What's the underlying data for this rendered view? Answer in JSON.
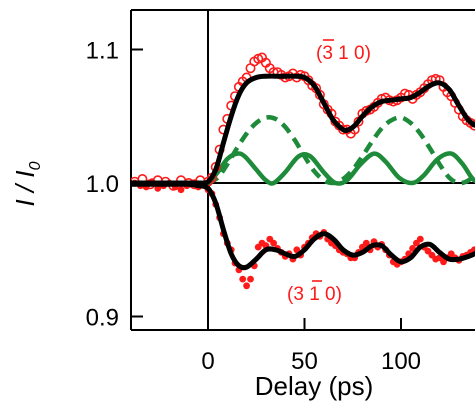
{
  "chart_data": {
    "type": "scatter",
    "xlabel": "Delay (ps)",
    "ylabel_main": "I / I",
    "ylabel_sub": "0",
    "xlim": [
      -40,
      145
    ],
    "ylim": [
      0.888,
      1.128
    ],
    "x_ticks": [
      0,
      50,
      100
    ],
    "x_tick_labels": [
      "0",
      "50",
      "100"
    ],
    "y_ticks": [
      0.9,
      1.0,
      1.1
    ],
    "y_tick_labels": [
      "0.9",
      "1.0",
      "1.1"
    ],
    "reference_lines": {
      "x": 0,
      "y": 1.0
    },
    "annotations": [
      {
        "text_open": "(",
        "text_bar": "3",
        "text_rest": " 1 0)",
        "overbar_on": "first-index",
        "series": "upper"
      },
      {
        "text_open": "(3 ",
        "text_bar": "1",
        "text_rest": " 0)",
        "overbar_on": "second-index",
        "series": "lower"
      }
    ],
    "series": [
      {
        "kind": "fit-upper",
        "style": "solid",
        "color": "#000000",
        "x": [
          -40,
          -30,
          -20,
          -10,
          -5,
          0,
          4,
          8,
          12,
          16,
          20,
          25,
          30,
          35,
          40,
          45,
          50,
          55,
          60,
          65,
          70,
          73,
          76,
          80,
          85,
          90,
          95,
          100,
          105,
          110,
          115,
          120,
          125,
          130,
          135,
          140,
          145
        ],
        "y": [
          1.0,
          1.0,
          1.0,
          1.0,
          1.0,
          1.001,
          1.01,
          1.03,
          1.05,
          1.066,
          1.075,
          1.079,
          1.08,
          1.08,
          1.08,
          1.08,
          1.079,
          1.073,
          1.06,
          1.047,
          1.04,
          1.04,
          1.043,
          1.05,
          1.057,
          1.061,
          1.062,
          1.063,
          1.064,
          1.068,
          1.073,
          1.075,
          1.07,
          1.058,
          1.047,
          1.043,
          1.05
        ]
      },
      {
        "kind": "fit-lower",
        "style": "solid",
        "color": "#000000",
        "x": [
          -40,
          -30,
          -20,
          -10,
          -5,
          0,
          4,
          8,
          12,
          16,
          20,
          25,
          30,
          35,
          40,
          45,
          50,
          55,
          60,
          65,
          70,
          75,
          80,
          85,
          90,
          95,
          100,
          105,
          110,
          115,
          120,
          125,
          130,
          135,
          140,
          145
        ],
        "y": [
          0.999,
          0.999,
          0.999,
          0.999,
          0.998,
          0.996,
          0.985,
          0.965,
          0.947,
          0.938,
          0.937,
          0.943,
          0.95,
          0.95,
          0.947,
          0.945,
          0.95,
          0.958,
          0.962,
          0.958,
          0.95,
          0.946,
          0.948,
          0.953,
          0.953,
          0.946,
          0.941,
          0.944,
          0.952,
          0.954,
          0.948,
          0.943,
          0.943,
          0.945,
          0.948,
          0.95
        ]
      },
      {
        "kind": "component-slow",
        "style": "dashed",
        "color": "#1d8b3a",
        "x": [
          0,
          5,
          10,
          15,
          20,
          25,
          30,
          35,
          40,
          45,
          50,
          55,
          60,
          65,
          70,
          75,
          80,
          85,
          90,
          95,
          100,
          105,
          110,
          115,
          120,
          125,
          130,
          135,
          140,
          145
        ],
        "y": [
          1.0,
          1.004,
          1.014,
          1.026,
          1.037,
          1.045,
          1.049,
          1.048,
          1.042,
          1.032,
          1.02,
          1.009,
          1.002,
          1.0,
          1.003,
          1.01,
          1.02,
          1.031,
          1.041,
          1.047,
          1.049,
          1.045,
          1.037,
          1.026,
          1.014,
          1.004,
          1.0,
          1.002,
          1.009,
          1.02
        ]
      },
      {
        "kind": "component-fast",
        "style": "solid",
        "color": "#1d8b3a",
        "x": [
          -40,
          -20,
          -5,
          0,
          5,
          10,
          15,
          19,
          25,
          30,
          34,
          40,
          47,
          53,
          60,
          66,
          72,
          79,
          86,
          92,
          99,
          106,
          112,
          119,
          126,
          132,
          138,
          145
        ],
        "y": [
          1.0,
          1.0,
          1.0,
          1.0,
          1.008,
          1.018,
          1.022,
          1.02,
          1.01,
          1.002,
          1.0,
          1.008,
          1.02,
          1.02,
          1.008,
          1.0,
          1.002,
          1.014,
          1.022,
          1.016,
          1.004,
          1.0,
          1.006,
          1.018,
          1.022,
          1.014,
          1.002,
          1.0
        ]
      },
      {
        "kind": "data-upper",
        "marker": "open-circle",
        "color": "#ff1a1a",
        "x": [
          -38,
          -34,
          -30,
          -26,
          -22,
          -18,
          -14,
          -10,
          -7,
          -4,
          0,
          2,
          4,
          6,
          8,
          10,
          12,
          14,
          16,
          18,
          20,
          22,
          24,
          26,
          28,
          30,
          32,
          34,
          36,
          38,
          40,
          42,
          44,
          46,
          48,
          50,
          52,
          54,
          56,
          58,
          60,
          62,
          64,
          66,
          68,
          70,
          72,
          74,
          76,
          78,
          80,
          82,
          84,
          86,
          88,
          90,
          92,
          94,
          96,
          98,
          100,
          102,
          104,
          106,
          108,
          110,
          112,
          114,
          116,
          118,
          120,
          122,
          124,
          126,
          128,
          130,
          132,
          134,
          136,
          138,
          140,
          142,
          144
        ],
        "y": [
          1.001,
          1.003,
          0.999,
          1.002,
          1.001,
          0.998,
          1.002,
          1.0,
          0.999,
          1.002,
          1.001,
          1.004,
          1.012,
          1.025,
          1.04,
          1.048,
          1.058,
          1.065,
          1.072,
          1.076,
          1.079,
          1.086,
          1.091,
          1.093,
          1.094,
          1.09,
          1.086,
          1.083,
          1.083,
          1.081,
          1.079,
          1.08,
          1.082,
          1.079,
          1.081,
          1.08,
          1.077,
          1.073,
          1.071,
          1.066,
          1.059,
          1.055,
          1.052,
          1.046,
          1.043,
          1.04,
          1.04,
          1.037,
          1.04,
          1.046,
          1.052,
          1.054,
          1.055,
          1.057,
          1.06,
          1.063,
          1.064,
          1.062,
          1.061,
          1.062,
          1.064,
          1.067,
          1.066,
          1.063,
          1.066,
          1.068,
          1.071,
          1.074,
          1.077,
          1.078,
          1.077,
          1.072,
          1.068,
          1.065,
          1.06,
          1.055,
          1.05,
          1.047,
          1.045,
          1.043,
          1.045,
          1.048,
          1.052
        ]
      },
      {
        "kind": "data-lower",
        "marker": "filled-circle",
        "color": "#ff1a1a",
        "x": [
          -38,
          -35,
          -32,
          -29,
          -26,
          -23,
          -20,
          -17,
          -14,
          -11,
          -8,
          -5,
          -2,
          0,
          2,
          4,
          6,
          8,
          10,
          12,
          14,
          16,
          18,
          20,
          22,
          24,
          26,
          28,
          30,
          32,
          34,
          36,
          38,
          40,
          42,
          44,
          46,
          48,
          50,
          52,
          54,
          56,
          58,
          60,
          62,
          64,
          66,
          68,
          70,
          72,
          74,
          76,
          78,
          80,
          82,
          84,
          86,
          88,
          90,
          92,
          94,
          96,
          98,
          100,
          102,
          104,
          106,
          108,
          110,
          112,
          114,
          116,
          118,
          120,
          122,
          124,
          126,
          128,
          130,
          132,
          134,
          136,
          138,
          140,
          142,
          144
        ],
        "y": [
          1.0,
          0.998,
          0.997,
          1.001,
          0.996,
          0.998,
          1.0,
          0.997,
          0.995,
          0.998,
          1.0,
          0.997,
          0.999,
          0.995,
          0.992,
          0.984,
          0.974,
          0.962,
          0.955,
          0.95,
          0.94,
          0.935,
          0.928,
          0.923,
          0.928,
          0.938,
          0.952,
          0.955,
          0.953,
          0.958,
          0.955,
          0.951,
          0.948,
          0.945,
          0.947,
          0.943,
          0.95,
          0.946,
          0.952,
          0.955,
          0.959,
          0.962,
          0.96,
          0.963,
          0.958,
          0.955,
          0.953,
          0.95,
          0.948,
          0.947,
          0.944,
          0.944,
          0.948,
          0.952,
          0.955,
          0.95,
          0.956,
          0.952,
          0.954,
          0.95,
          0.946,
          0.941,
          0.939,
          0.941,
          0.943,
          0.947,
          0.951,
          0.955,
          0.958,
          0.952,
          0.949,
          0.946,
          0.943,
          0.944,
          0.941,
          0.944,
          0.947,
          0.944,
          0.942,
          0.945,
          0.946,
          0.948,
          0.95,
          0.952,
          0.954,
          0.95
        ]
      }
    ]
  }
}
